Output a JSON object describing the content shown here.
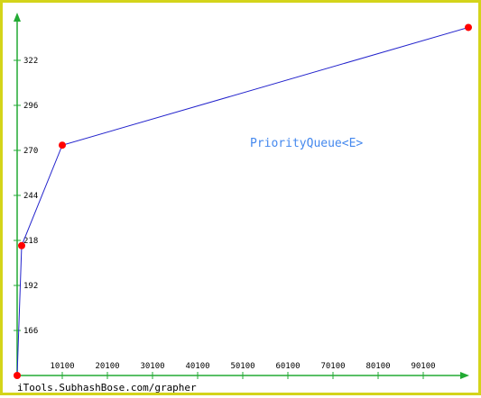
{
  "chart_data": {
    "type": "line",
    "title": "",
    "xlabel": "",
    "ylabel": "",
    "x_ticks": [
      10100,
      20100,
      30100,
      40100,
      50100,
      60100,
      70100,
      80100,
      90100
    ],
    "y_ticks": [
      166,
      192,
      218,
      244,
      270,
      296,
      322
    ],
    "xlim": [
      100,
      100100
    ],
    "ylim": [
      140,
      348
    ],
    "grid": false,
    "series": [
      {
        "name": "PriorityQueue<E>",
        "x": [
          100,
          1100,
          10100,
          100100
        ],
        "y": [
          140,
          215,
          273,
          341
        ],
        "line_color": "#2222cc",
        "marker_color": "#ff0000"
      }
    ],
    "axis_color": "#22aa33",
    "label_color": "#4488ee"
  },
  "footer": {
    "credit": "iTools.SubhashBose.com/grapher"
  }
}
